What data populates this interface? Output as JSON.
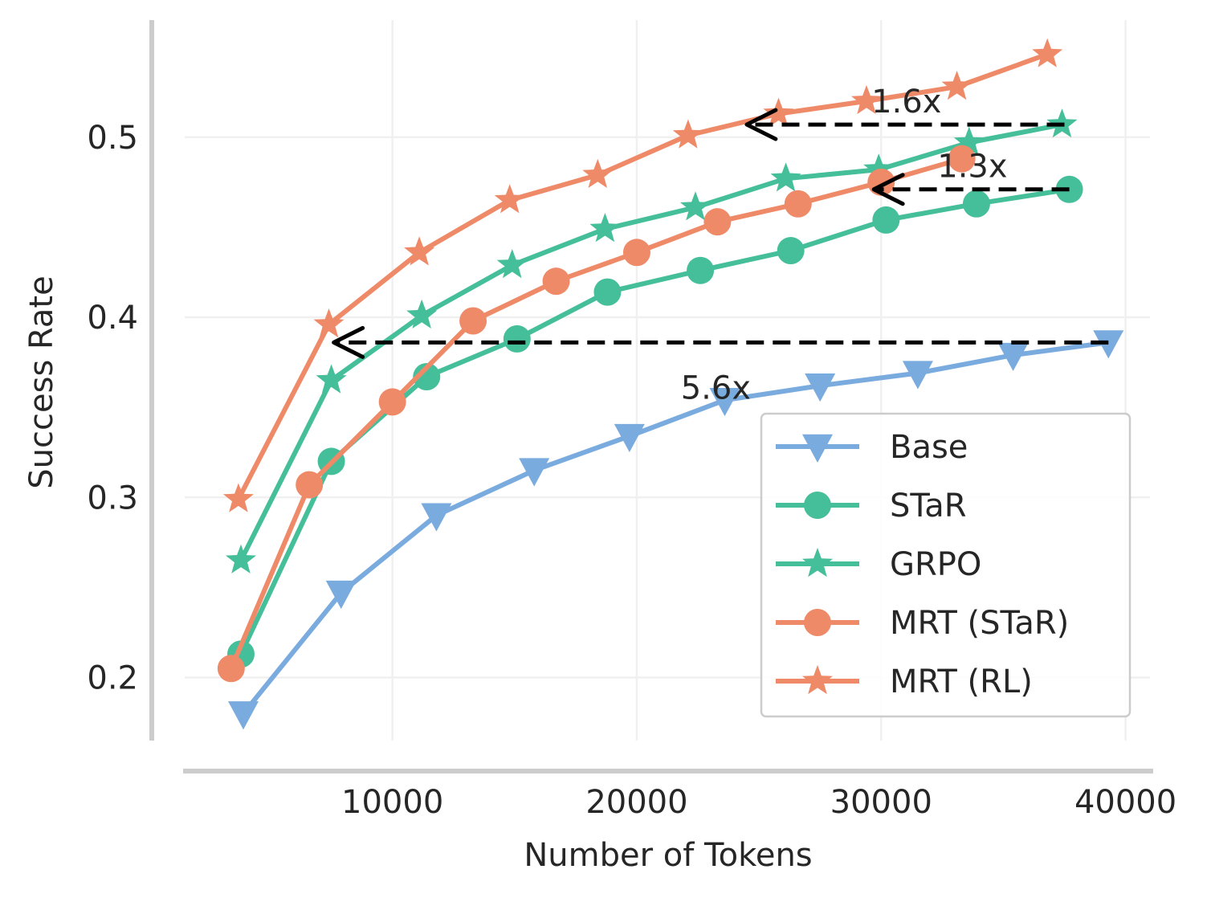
{
  "chart_data": {
    "type": "line",
    "xlabel": "Number of Tokens",
    "ylabel": "Success Rate",
    "xlim": [
      1500,
      41000
    ],
    "ylim": [
      0.165,
      0.565
    ],
    "xticks": [
      10000,
      20000,
      30000,
      40000
    ],
    "xtick_labels": [
      "10000",
      "20000",
      "30000",
      "40000"
    ],
    "yticks": [
      0.2,
      0.3,
      0.4,
      0.5
    ],
    "ytick_labels": [
      "0.2",
      "0.3",
      "0.4",
      "0.5"
    ],
    "grid": true,
    "legend_position": "lower-right",
    "series": [
      {
        "name": "Base",
        "color": "#7aabde",
        "marker": "triangle-down",
        "x": [
          3900,
          7900,
          11800,
          15800,
          19700,
          23600,
          27500,
          31500,
          35400,
          39300
        ],
        "y": [
          0.18,
          0.247,
          0.29,
          0.315,
          0.334,
          0.354,
          0.362,
          0.369,
          0.379,
          0.386
        ]
      },
      {
        "name": "STaR",
        "color": "#45be9a",
        "marker": "circle",
        "x": [
          3800,
          7500,
          11400,
          15100,
          18800,
          22600,
          26300,
          30200,
          33900,
          37700
        ],
        "y": [
          0.213,
          0.32,
          0.367,
          0.388,
          0.414,
          0.426,
          0.437,
          0.454,
          0.463,
          0.471
        ]
      },
      {
        "name": "GRPO",
        "color": "#45be9a",
        "marker": "star",
        "x": [
          3800,
          7500,
          11200,
          14900,
          18700,
          22400,
          26100,
          29900,
          33600,
          37400
        ],
        "y": [
          0.265,
          0.365,
          0.401,
          0.429,
          0.449,
          0.461,
          0.477,
          0.482,
          0.497,
          0.507
        ]
      },
      {
        "name": "MRT (STaR)",
        "color": "#ef8a69",
        "marker": "circle",
        "x": [
          3400,
          6600,
          10000,
          13300,
          16700,
          20000,
          23300,
          26600,
          30000,
          33300
        ],
        "y": [
          0.205,
          0.307,
          0.353,
          0.398,
          0.42,
          0.436,
          0.453,
          0.463,
          0.475,
          0.488
        ]
      },
      {
        "name": "MRT (RL)",
        "color": "#ef8a69",
        "marker": "star",
        "x": [
          3700,
          7400,
          11100,
          14800,
          18400,
          22100,
          25800,
          29400,
          33100,
          36800
        ],
        "y": [
          0.299,
          0.396,
          0.436,
          0.465,
          0.479,
          0.501,
          0.513,
          0.52,
          0.528,
          0.546
        ]
      }
    ],
    "arrows": [
      {
        "from": [
          37500,
          0.507
        ],
        "to": [
          24500,
          0.507
        ]
      },
      {
        "from": [
          37700,
          0.471
        ],
        "to": [
          29700,
          0.471
        ]
      },
      {
        "from": [
          39300,
          0.386
        ],
        "to": [
          7600,
          0.386
        ]
      }
    ],
    "annotations": [
      {
        "text": "1.6x",
        "x": 29600,
        "y": 0.52
      },
      {
        "text": "1.3x",
        "x": 32300,
        "y": 0.484
      },
      {
        "text": "5.6x",
        "x": 21800,
        "y": 0.361
      }
    ]
  }
}
